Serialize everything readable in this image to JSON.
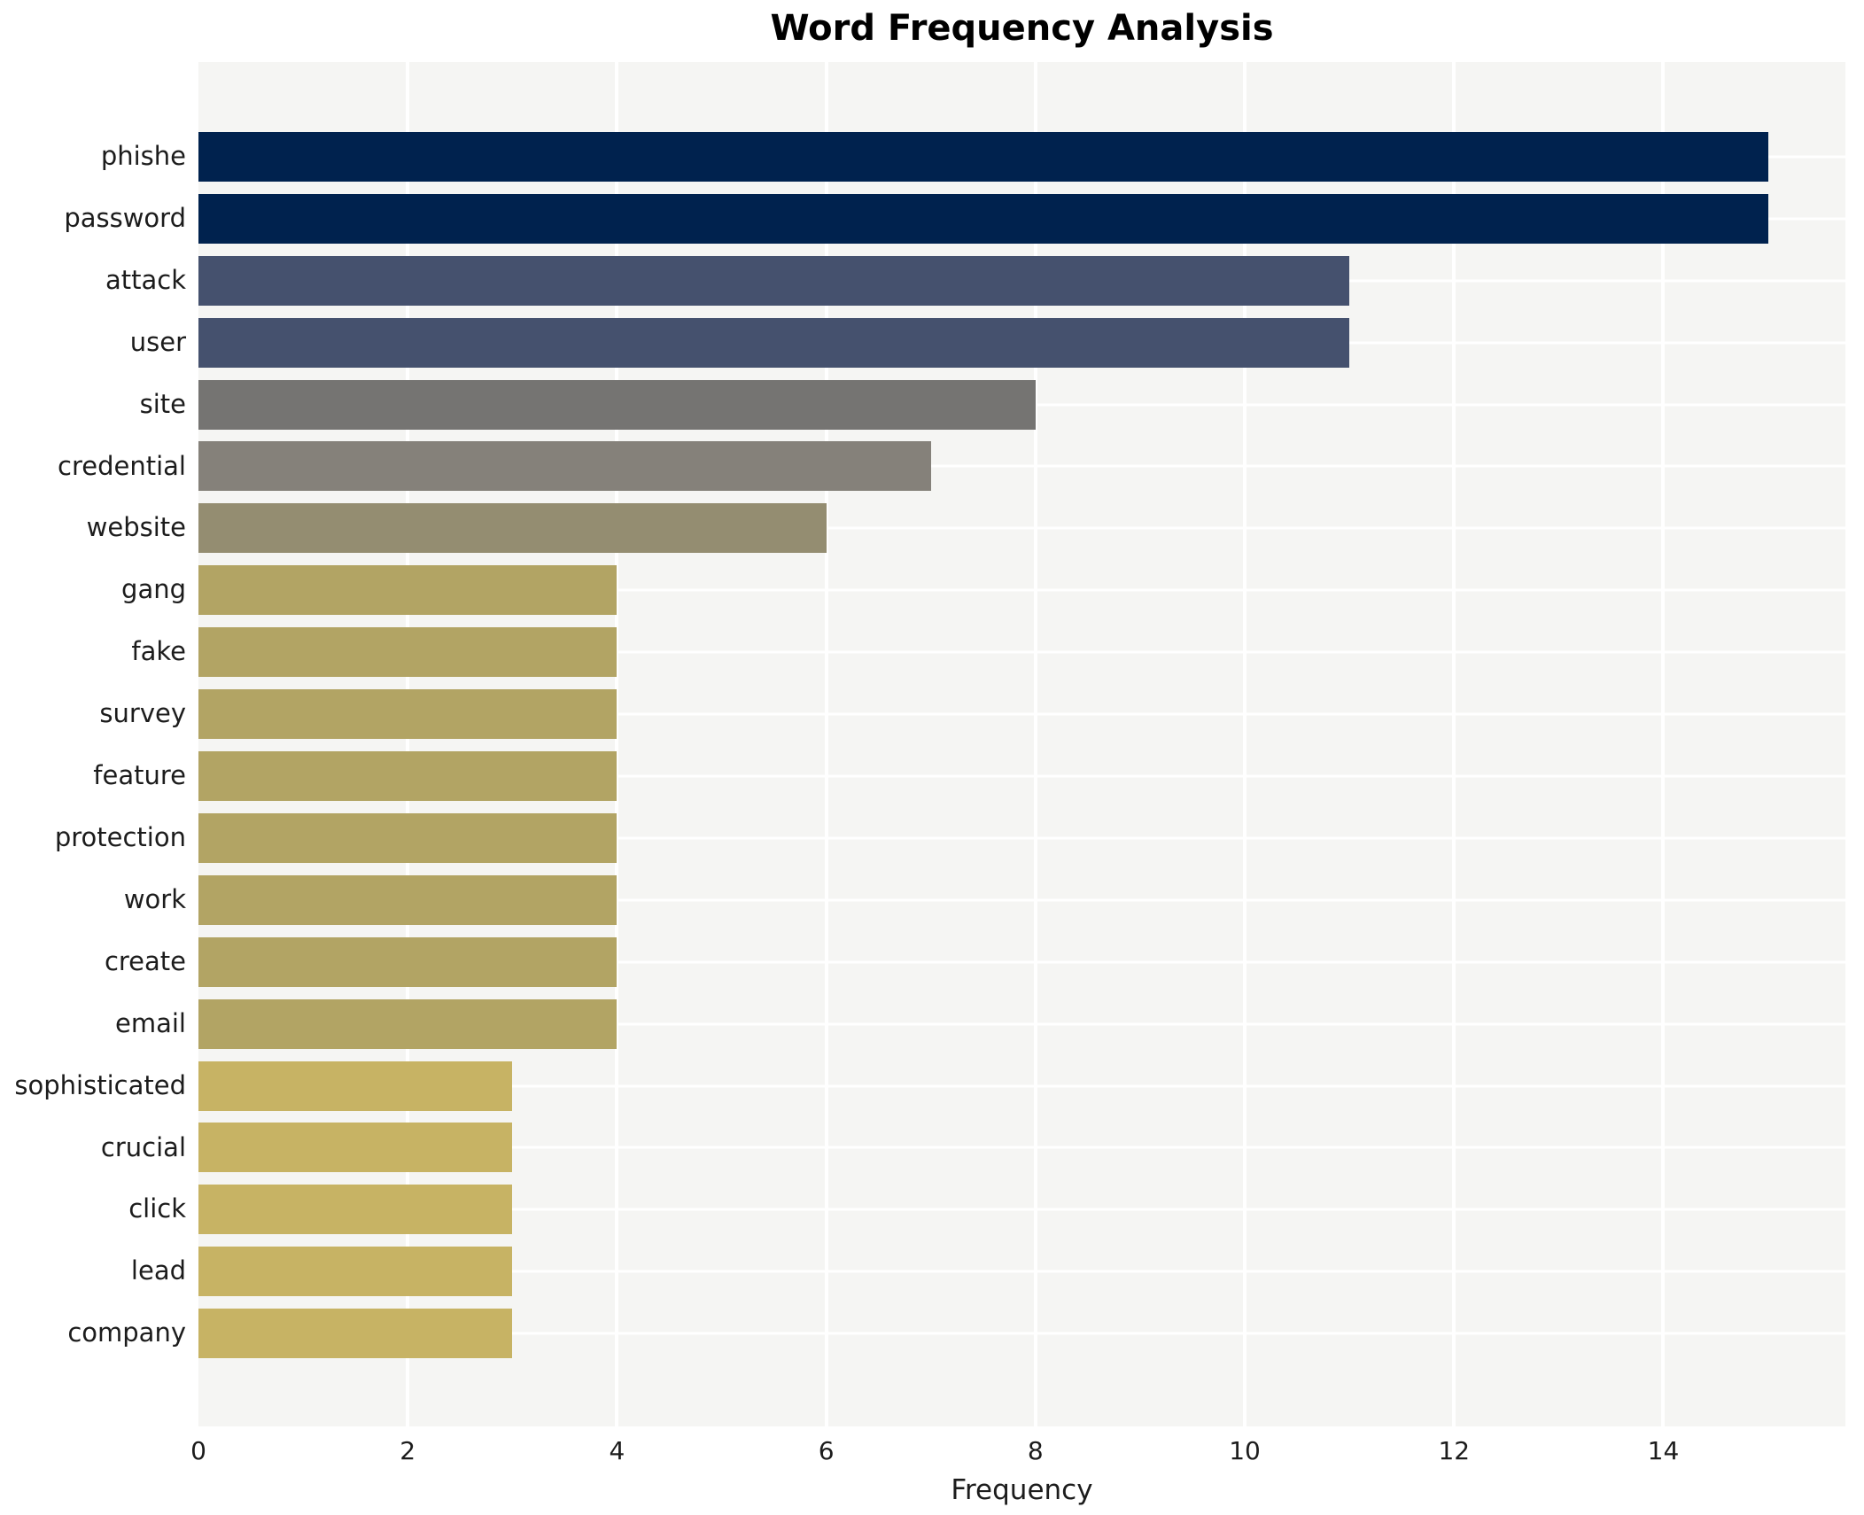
{
  "title": "Word Frequency Analysis",
  "chart_data": {
    "type": "bar",
    "orientation": "horizontal",
    "title": "Word Frequency Analysis",
    "xlabel": "Frequency",
    "ylabel": "",
    "categories": [
      "phishe",
      "password",
      "attack",
      "user",
      "site",
      "credential",
      "website",
      "gang",
      "fake",
      "survey",
      "feature",
      "protection",
      "work",
      "create",
      "email",
      "sophisticated",
      "crucial",
      "click",
      "lead",
      "company"
    ],
    "values": [
      15,
      15,
      11,
      11,
      8,
      7,
      6,
      4,
      4,
      4,
      4,
      4,
      4,
      4,
      4,
      3,
      3,
      3,
      3,
      3
    ],
    "bar_colors": [
      "#00224e",
      "#00224e",
      "#45516e",
      "#45516e",
      "#757472",
      "#85817a",
      "#948d71",
      "#b2a464",
      "#b2a464",
      "#b2a464",
      "#b2a464",
      "#b2a464",
      "#b2a464",
      "#b2a464",
      "#b2a464",
      "#c7b364",
      "#c7b364",
      "#c7b364",
      "#c7b364",
      "#c7b364"
    ],
    "x_ticks": [
      0,
      2,
      4,
      6,
      8,
      10,
      12,
      14
    ],
    "xlim": [
      0,
      15.74
    ],
    "grid": true,
    "legend": false,
    "colors": {
      "figure_bg": "#ffffff",
      "plot_bg": "#f5f5f3",
      "grid": "#ffffff",
      "text": "#1c1c1c",
      "title": "#000000"
    }
  }
}
